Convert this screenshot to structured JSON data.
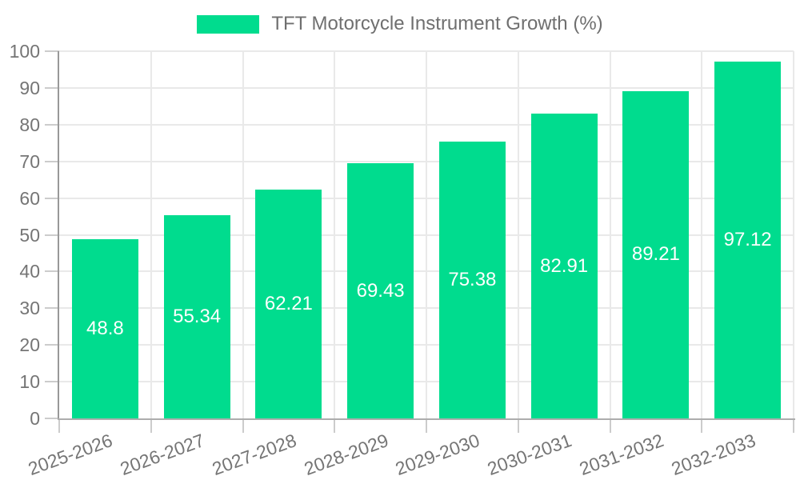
{
  "legend": {
    "label": "TFT Motorcycle Instrument Growth (%)"
  },
  "chart_data": {
    "type": "bar",
    "title": "TFT Motorcycle Instrument Growth (%)",
    "categories": [
      "2025-2026",
      "2026-2027",
      "2027-2028",
      "2028-2029",
      "2029-2030",
      "2030-2031",
      "2031-2032",
      "2032-2033"
    ],
    "values": [
      48.8,
      55.34,
      62.21,
      69.43,
      75.38,
      82.91,
      89.21,
      97.12
    ],
    "value_labels": [
      "48.8",
      "55.34",
      "62.21",
      "69.43",
      "75.38",
      "82.91",
      "89.21",
      "97.12"
    ],
    "y_ticks": [
      0,
      10,
      20,
      30,
      40,
      50,
      60,
      70,
      80,
      90,
      100
    ],
    "ylim": [
      0,
      100
    ],
    "grid": true,
    "legend_position": "top-center",
    "x_label_rotation_deg": -20,
    "colors": {
      "bar": "#00dc8e",
      "value_label": "#ffffff",
      "axis_text": "#757575",
      "legend_text": "#6f6f6f",
      "gridline": "#e9e9e9",
      "y_axis_line": "#999999",
      "x_axis_line": "#adadad",
      "tick": "#cccccc",
      "background": "#ffffff"
    }
  }
}
